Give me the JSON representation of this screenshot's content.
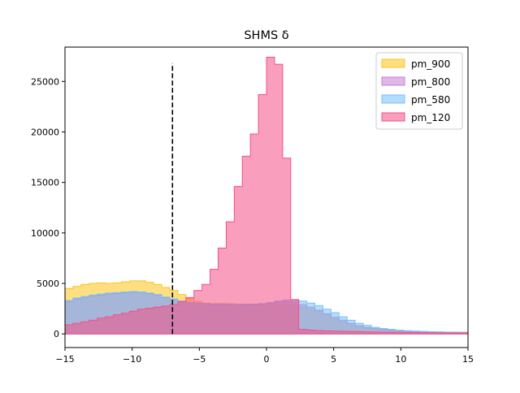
{
  "chart_data": {
    "type": "area",
    "title": "SHMS δ",
    "xlabel": "",
    "ylabel": "",
    "xlim": [
      -15,
      15
    ],
    "ylim": [
      -1350,
      28400
    ],
    "x_ticks": [
      -15,
      -10,
      -5,
      0,
      5,
      10,
      15
    ],
    "x_tick_labels": [
      "−15",
      "−10",
      "−5",
      "0",
      "5",
      "10",
      "15"
    ],
    "y_ticks": [
      0,
      5000,
      10000,
      15000,
      20000,
      25000
    ],
    "y_tick_labels": [
      "0",
      "5000",
      "10000",
      "15000",
      "20000",
      "25000"
    ],
    "grid": false,
    "legend_position": "top-right",
    "bin_edges": [
      -15,
      -14.4,
      -13.8,
      -13.2,
      -12.6,
      -12,
      -11.4,
      -10.8,
      -10.2,
      -9.6,
      -9,
      -8.4,
      -7.8,
      -7.2,
      -6.6,
      -6,
      -5.4,
      -4.8,
      -4.2,
      -3.6,
      -3,
      -2.4,
      -1.8,
      -1.2,
      -0.6,
      0,
      0.6,
      1.2,
      1.8,
      2.4,
      3,
      3.6,
      4.2,
      4.8,
      5.4,
      6,
      6.6,
      7.2,
      7.8,
      8.4,
      9,
      9.6,
      10.2,
      10.8,
      11.4,
      12,
      12.6,
      13.2,
      13.8,
      14.4,
      15
    ],
    "series": [
      {
        "name": "pm_900",
        "color": "#fcc419",
        "values": [
          4500,
          4700,
          4900,
          5000,
          5050,
          5000,
          5050,
          5150,
          5250,
          5250,
          5100,
          4900,
          4600,
          4300,
          3900,
          3500,
          3200,
          3050,
          3000,
          3000,
          2980,
          2950,
          2950,
          2900,
          2900,
          2950,
          2950,
          2920,
          2850,
          2650,
          2450,
          2250,
          1900,
          1500,
          1150,
          900,
          680,
          550,
          450,
          380,
          330,
          280,
          250,
          230,
          220,
          210,
          190,
          180,
          170,
          160
        ]
      },
      {
        "name": "pm_800",
        "color": "#c77dd6",
        "values": [
          3200,
          3450,
          3600,
          3750,
          3850,
          3950,
          4000,
          4100,
          4150,
          4100,
          4000,
          3850,
          3600,
          3400,
          3250,
          3100,
          3000,
          2950,
          2900,
          2900,
          2900,
          2900,
          2900,
          2900,
          2950,
          3050,
          3150,
          3200,
          3150,
          2900,
          2650,
          2350,
          2000,
          1650,
          1350,
          1050,
          820,
          650,
          530,
          450,
          380,
          320,
          280,
          240,
          220,
          200,
          190,
          170,
          160,
          150
        ]
      },
      {
        "name": "pm_580",
        "color": "#74c0fc",
        "values": [
          3300,
          3550,
          3700,
          3850,
          3950,
          4050,
          4100,
          4150,
          4200,
          4150,
          4050,
          3900,
          3650,
          3450,
          3250,
          3100,
          3050,
          3000,
          2950,
          2950,
          2950,
          2900,
          2950,
          2950,
          3000,
          3100,
          3250,
          3350,
          3350,
          3250,
          3050,
          2800,
          2450,
          2100,
          1700,
          1350,
          1050,
          850,
          650,
          530,
          450,
          370,
          320,
          280,
          250,
          220,
          200,
          180,
          170,
          150
        ]
      },
      {
        "name": "pm_120",
        "color": "#f64f86",
        "values": [
          900,
          1050,
          1200,
          1350,
          1550,
          1700,
          1900,
          2050,
          2250,
          2450,
          2550,
          2650,
          2750,
          2900,
          3200,
          3600,
          4300,
          4900,
          6400,
          8500,
          11100,
          14600,
          17600,
          19800,
          23700,
          27400,
          26700,
          17400,
          3400,
          450,
          380,
          330,
          300,
          280,
          260,
          240,
          230,
          210,
          190,
          180,
          170,
          160,
          150,
          140,
          130,
          120,
          110,
          110,
          100,
          100
        ]
      }
    ],
    "annotations": [
      {
        "type": "vertical-dashed-line",
        "x": -7.0,
        "y_range": [
          0,
          26800
        ],
        "color": "#000000"
      }
    ]
  }
}
